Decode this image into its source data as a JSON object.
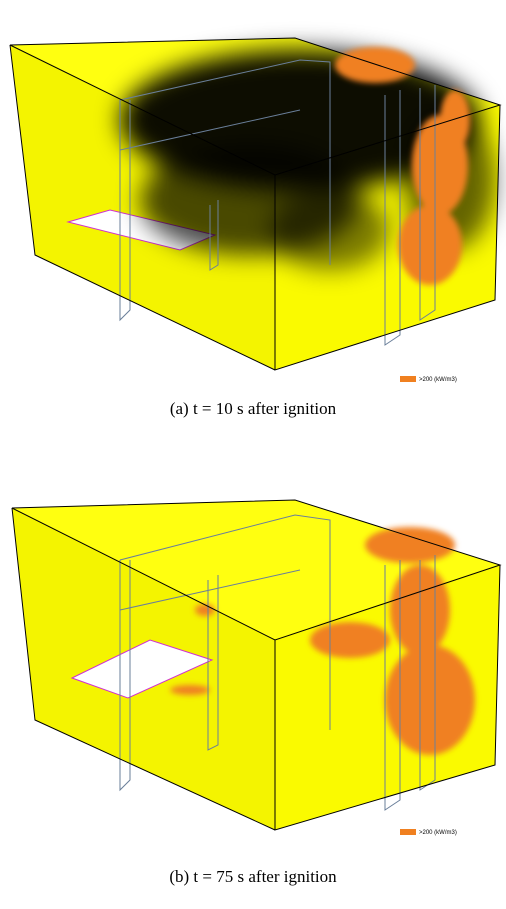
{
  "panels": [
    {
      "caption": "(a)  t  =  10  s  after  ignition",
      "legend": ">200 (kW/m3)"
    },
    {
      "caption": "(b)  t  =  75  s  after  ignition",
      "legend": ">200 (kW/m3)"
    }
  ]
}
